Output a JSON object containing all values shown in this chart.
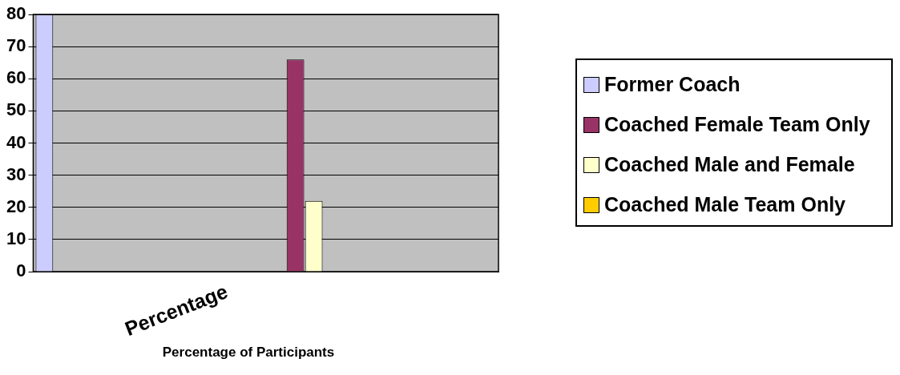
{
  "chart_data": {
    "type": "bar",
    "xlabel": "Percentage of Participants",
    "categories": [
      null,
      null,
      "Percentage",
      null,
      null,
      null
    ],
    "series": [
      {
        "name": "Former Coach",
        "color": "#ccccff",
        "values": [
          80,
          null,
          null,
          null,
          null,
          null
        ]
      },
      {
        "name": "Coached Female Team Only",
        "color": "#993366",
        "values": [
          null,
          null,
          null,
          66,
          null,
          null
        ]
      },
      {
        "name": "Coached Male and Female",
        "color": "#ffffcc",
        "values": [
          null,
          null,
          null,
          22,
          null,
          null
        ]
      },
      {
        "name": "Coached Male Team Only",
        "color": "#ffcc00",
        "values": [
          null,
          null,
          null,
          0,
          null,
          null
        ]
      }
    ],
    "ylim": [
      0,
      80
    ],
    "yticks": [
      0,
      10,
      20,
      30,
      40,
      50,
      60,
      70,
      80
    ],
    "grid": "y",
    "legend": "right"
  }
}
